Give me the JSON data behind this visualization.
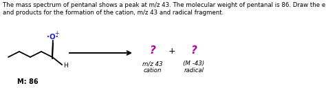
{
  "title_line1": "The mass spectrum of pentanal shows a peak at m/z 43. The molecular weight of pentanal is 86. Draw the electron flow",
  "title_line2": "and products for the formation of the cation, m/z 43 and radical fragment.",
  "mol_label": "M: 86",
  "q1_label": "?",
  "q2_label": "?",
  "plus_label": "+",
  "sub1_line1": "m/z 43",
  "sub1_line2": "cation",
  "sub2_line1": "(M -43)",
  "sub2_line2": "radical",
  "text_color": "#000000",
  "question_color": "#aa00aa",
  "mol_label_color": "#000000",
  "background_color": "#ffffff",
  "arrow_color": "#000000",
  "bond_color": "#000000",
  "oxygen_color": "#2222cc",
  "figsize": [
    4.74,
    1.28
  ],
  "dpi": 100
}
